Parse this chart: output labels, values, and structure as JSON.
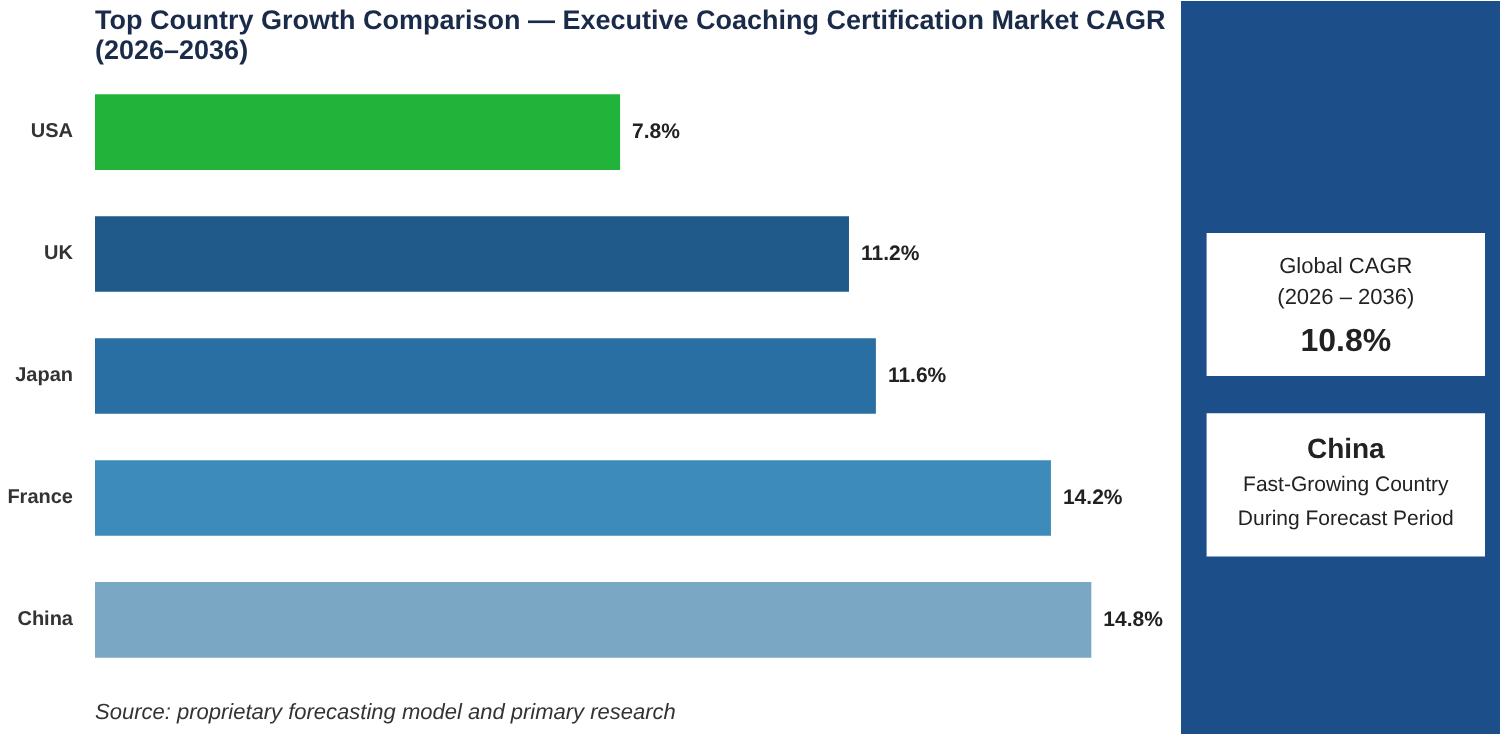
{
  "chart_data": {
    "type": "bar",
    "orientation": "horizontal",
    "title": "Top Country Growth Comparison — Executive Coaching Certification Market CAGR (2026–2036)",
    "categories": [
      "USA",
      "UK",
      "Japan",
      "France",
      "China"
    ],
    "values": [
      7.8,
      11.2,
      11.6,
      14.2,
      14.8
    ],
    "colors": [
      "#22b33a",
      "#1f5a8a",
      "#2a6fa3",
      "#3d8bba",
      "#7aa8c4"
    ],
    "value_labels": [
      "7.8%",
      "11.2%",
      "11.6%",
      "14.2%",
      "14.8%"
    ],
    "grid": false,
    "annotations": [
      "Global CAGR",
      "(2026 – 2036)",
      "10.8%",
      "China",
      "Fast-Growing Country",
      "During Forecast Period",
      "Source: proprietary forecasting model and primary research"
    ]
  }
}
